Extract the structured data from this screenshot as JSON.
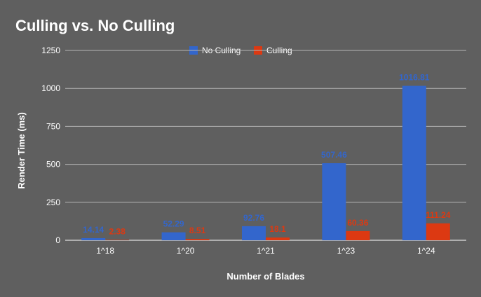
{
  "chart_data": {
    "type": "bar",
    "title": "Culling vs. No Culling",
    "xlabel": "Number of Blades",
    "ylabel": "Render Time (ms)",
    "categories": [
      "1^18",
      "1^20",
      "1^21",
      "1^23",
      "1^24"
    ],
    "series": [
      {
        "name": "No Culling",
        "color": "#3366cc",
        "values": [
          14.14,
          52.29,
          92.76,
          507.46,
          1016.81
        ]
      },
      {
        "name": "Culling",
        "color": "#dc3912",
        "values": [
          2.38,
          8.51,
          18.1,
          60.36,
          111.24
        ]
      }
    ],
    "ylim": [
      0,
      1250
    ],
    "yticks": [
      0,
      250,
      500,
      750,
      1000,
      1250
    ],
    "grid": true,
    "legend": "top"
  }
}
